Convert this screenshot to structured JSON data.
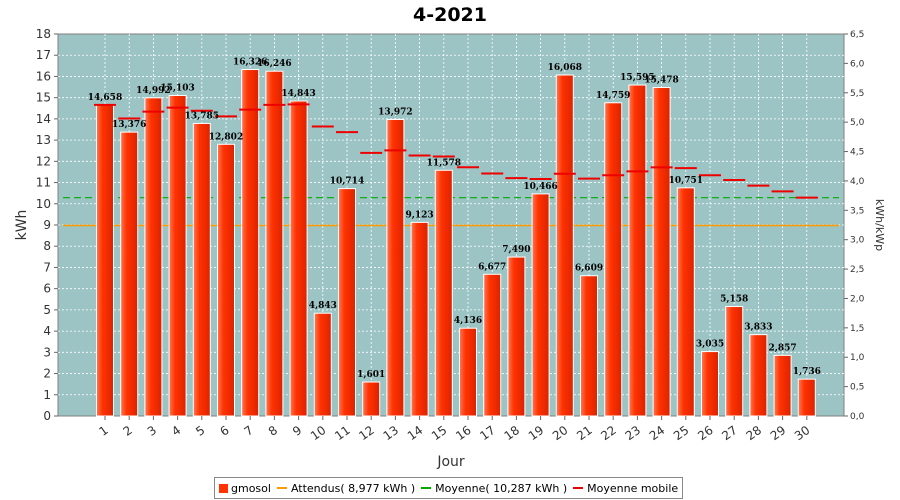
{
  "chart_data": {
    "type": "bar",
    "title": "4-2021",
    "xlabel": "Jour",
    "ylabel": "kWh",
    "y2label": "kWh/kWp",
    "ylim": [
      0,
      18
    ],
    "y2lim": [
      0,
      6.5
    ],
    "categories": [
      "1",
      "2",
      "3",
      "4",
      "5",
      "6",
      "7",
      "8",
      "9",
      "10",
      "11",
      "12",
      "13",
      "14",
      "15",
      "16",
      "17",
      "18",
      "19",
      "20",
      "21",
      "22",
      "23",
      "24",
      "25",
      "26",
      "27",
      "28",
      "29",
      "30"
    ],
    "series": [
      {
        "name": "gmosol",
        "type": "bar",
        "color": "#ff3300",
        "values": [
          14.658,
          13.376,
          14.992,
          15.103,
          13.785,
          12.802,
          16.326,
          16.246,
          14.843,
          4.843,
          10.714,
          1.601,
          13.972,
          9.123,
          11.578,
          4.136,
          6.677,
          7.49,
          10.466,
          16.068,
          6.609,
          14.759,
          15.595,
          15.478,
          10.751,
          3.035,
          5.158,
          3.833,
          2.857,
          1.736
        ],
        "labels": [
          "14,658",
          "13,376",
          "14,992",
          "15,103",
          "13,785",
          "12,802",
          "16,326",
          "16,246",
          "14,843",
          "4,843",
          "10,714",
          "1,601",
          "13,972",
          "9,123",
          "11,578",
          "4,136",
          "6,677",
          "7,490",
          "10,466",
          "16,068",
          "6,609",
          "14,759",
          "15,595",
          "15,478",
          "10,751",
          "3,035",
          "5,158",
          "3,833",
          "2,857",
          "1,736"
        ]
      },
      {
        "name": "Attendus( 8,977 kWh )",
        "type": "line",
        "color": "#ff9900",
        "value": 8.977
      },
      {
        "name": "Moyenne( 10,287 kWh )",
        "type": "line",
        "color": "#00aa00",
        "value": 10.287
      },
      {
        "name": "Moyenne mobile",
        "type": "step",
        "color": "#ee0000",
        "values": [
          14.658,
          14.017,
          14.342,
          14.532,
          14.383,
          14.121,
          14.436,
          14.663,
          14.683,
          13.643,
          13.377,
          12.396,
          12.518,
          12.275,
          12.228,
          11.722,
          11.425,
          11.206,
          11.167,
          11.412,
          11.183,
          11.345,
          11.529,
          11.718,
          11.68,
          11.347,
          11.118,
          10.858,
          10.582,
          10.287
        ]
      }
    ],
    "yticks": [
      "0",
      "1",
      "2",
      "3",
      "4",
      "5",
      "6",
      "7",
      "8",
      "9",
      "10",
      "11",
      "12",
      "13",
      "14",
      "15",
      "16",
      "17",
      "18"
    ],
    "y2ticks": [
      "0,0",
      "0,5",
      "1,0",
      "1,5",
      "2,0",
      "2,5",
      "3,0",
      "3,5",
      "4,0",
      "4,5",
      "5,0",
      "5,5",
      "6,0",
      "6,5"
    ],
    "grid": true,
    "legend": "bottom",
    "colors": {
      "plot_bg": "#9dc4c4",
      "grid": "#ffffff",
      "bar": "#ff3300"
    }
  }
}
